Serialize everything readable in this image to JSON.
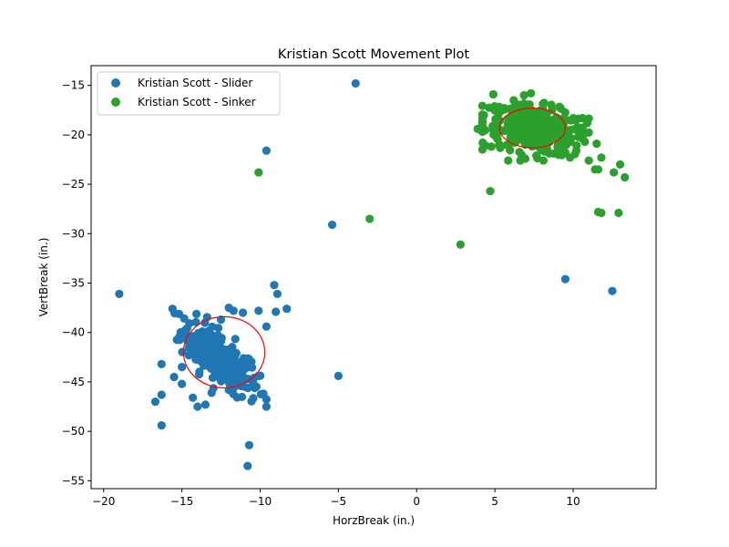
{
  "chart_data": {
    "type": "scatter",
    "title": "Kristian Scott Movement Plot",
    "xlabel": "HorzBreak (in.)",
    "ylabel": "VertBreak (in.)",
    "xlim": [
      -20.8,
      15.3
    ],
    "ylim": [
      -55.8,
      -13.0
    ],
    "xticks": [
      -20,
      -15,
      -10,
      -5,
      0,
      5,
      10
    ],
    "yticks": [
      -15,
      -20,
      -25,
      -30,
      -35,
      -40,
      -45,
      -50,
      -55
    ],
    "grid": false,
    "legend_position": "upper-left",
    "series": [
      {
        "name": "Kristian Scott - Slider",
        "color": "#1f77b4",
        "ellipse": {
          "cx": -12.3,
          "cy": -42.0,
          "rx": 2.6,
          "ry": 3.6,
          "color": "#ff0000"
        },
        "cluster": {
          "cx": -12.6,
          "cy": -42.6,
          "sx": 1.25,
          "sy": 1.9,
          "n": 230,
          "r": -0.72,
          "xmin": -15.6,
          "xmax": -9.6,
          "ymin": -47.5,
          "ymax": -37.6
        },
        "points": [
          [
            -19.0,
            -36.1
          ],
          [
            -3.9,
            -14.8
          ],
          [
            -9.6,
            -21.6
          ],
          [
            -5.4,
            -29.1
          ],
          [
            -5.0,
            -44.4
          ],
          [
            9.5,
            -34.6
          ],
          [
            12.5,
            -35.8
          ],
          [
            -10.7,
            -51.4
          ],
          [
            -10.8,
            -53.5
          ],
          [
            -16.3,
            -49.4
          ],
          [
            -16.7,
            -47.0
          ],
          [
            -16.3,
            -46.3
          ],
          [
            -16.3,
            -43.2
          ],
          [
            -9.1,
            -35.2
          ],
          [
            -8.9,
            -36.1
          ],
          [
            -8.3,
            -37.6
          ],
          [
            -9.0,
            -37.9
          ],
          [
            -9.6,
            -39.4
          ],
          [
            -10.1,
            -44.4
          ],
          [
            -11.3,
            -45.3
          ],
          [
            -12.0,
            -45.8
          ],
          [
            -13.1,
            -46.1
          ],
          [
            -14.0,
            -47.5
          ],
          [
            -13.5,
            -47.3
          ],
          [
            -14.3,
            -46.6
          ],
          [
            -15.0,
            -45.2
          ],
          [
            -15.5,
            -44.5
          ],
          [
            -13.7,
            -39.9
          ],
          [
            -12.5,
            -38.7
          ],
          [
            -11.7,
            -37.8
          ],
          [
            -11.1,
            -38.0
          ],
          [
            -10.1,
            -37.8
          ],
          [
            -12.0,
            -37.5
          ],
          [
            -14.1,
            -40.9
          ],
          [
            -15.0,
            -43.5
          ]
        ]
      },
      {
        "name": "Kristian Scott - Sinker",
        "color": "#2ca02c",
        "ellipse": {
          "cx": 7.4,
          "cy": -19.3,
          "rx": 2.1,
          "ry": 2.0,
          "color": "#ff0000"
        },
        "cluster": {
          "cx": 7.6,
          "cy": -19.5,
          "sx": 1.7,
          "sy": 1.25,
          "n": 300,
          "r": -0.35,
          "xmin": 4.2,
          "xmax": 11.0,
          "ymin": -22.6,
          "ymax": -16.0
        },
        "points": [
          [
            -10.1,
            -23.8
          ],
          [
            -3.0,
            -28.5
          ],
          [
            2.8,
            -31.1
          ],
          [
            4.7,
            -25.7
          ],
          [
            11.6,
            -27.8
          ],
          [
            11.8,
            -27.9
          ],
          [
            12.9,
            -27.9
          ],
          [
            12.6,
            -23.8
          ],
          [
            13.0,
            -23.0
          ],
          [
            13.3,
            -24.3
          ],
          [
            11.4,
            -23.5
          ],
          [
            11.6,
            -23.5
          ],
          [
            11.8,
            -22.3
          ],
          [
            11.5,
            -20.9
          ],
          [
            10.6,
            -20.4
          ],
          [
            10.9,
            -18.8
          ],
          [
            10.6,
            -18.3
          ],
          [
            9.8,
            -22.3
          ],
          [
            8.1,
            -22.6
          ],
          [
            4.9,
            -15.9
          ],
          [
            4.4,
            -21.1
          ],
          [
            5.3,
            -21.0
          ],
          [
            3.9,
            -19.4
          ],
          [
            4.3,
            -18.0
          ],
          [
            7.3,
            -15.8
          ],
          [
            6.2,
            -16.5
          ],
          [
            6.7,
            -22.0
          ],
          [
            5.6,
            -17.3
          ],
          [
            9.0,
            -21.2
          ],
          [
            10.2,
            -21.6
          ]
        ]
      }
    ]
  }
}
